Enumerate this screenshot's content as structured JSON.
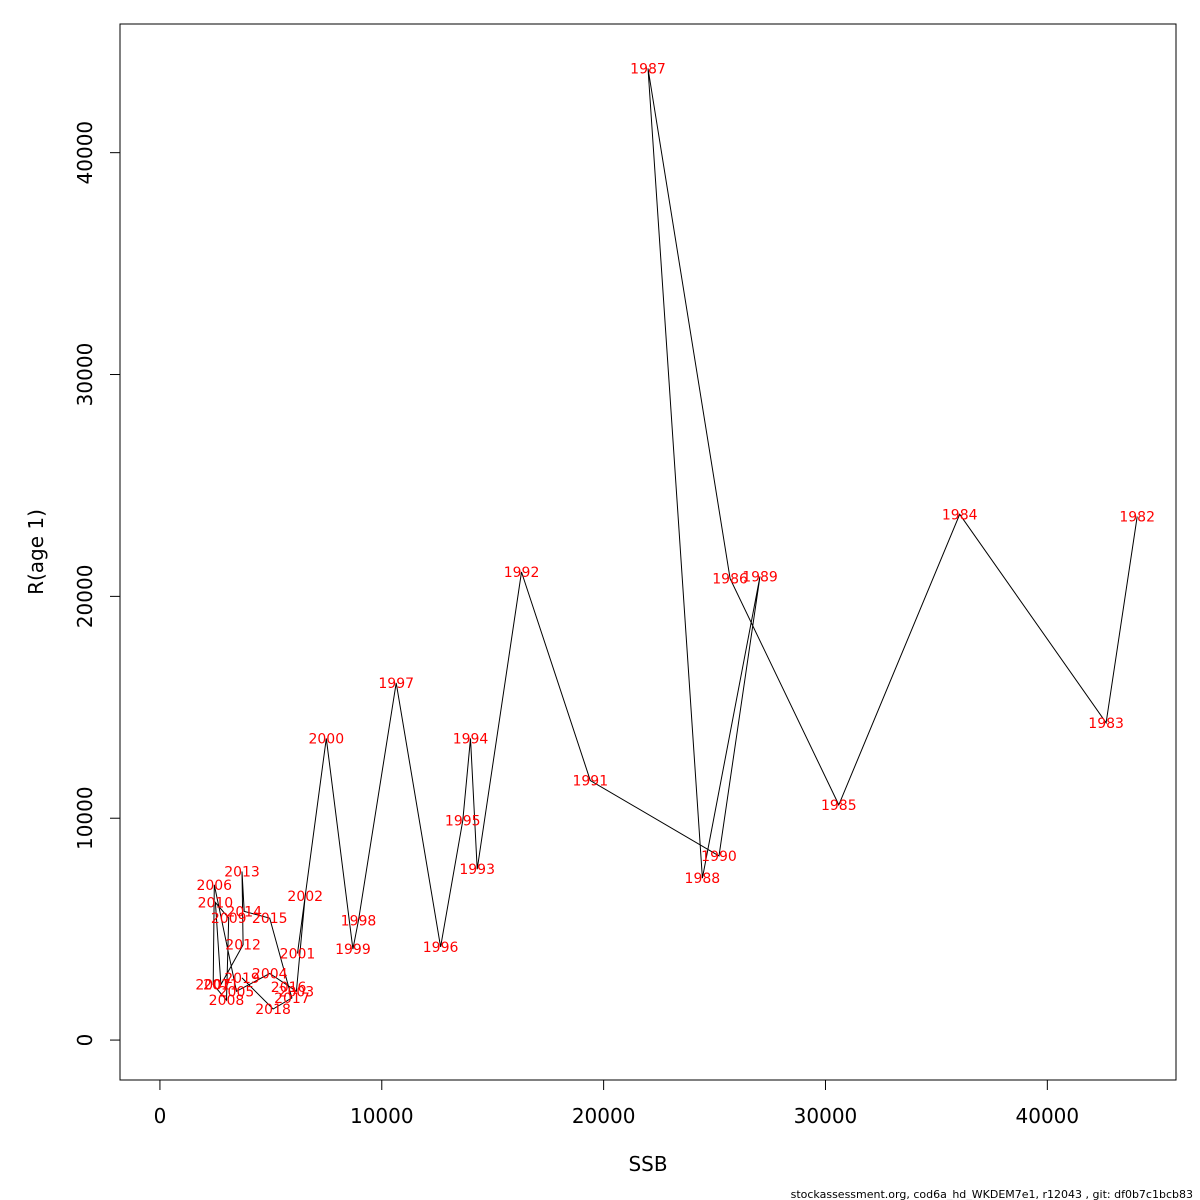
{
  "chart_data": {
    "type": "line",
    "title": "",
    "xlabel": "SSB",
    "ylabel": "R(age 1)",
    "xlim": [
      -1800,
      45800
    ],
    "ylim": [
      -1800,
      45800
    ],
    "xticks": [
      0,
      10000,
      20000,
      30000,
      40000
    ],
    "yticks": [
      0,
      10000,
      20000,
      30000,
      40000
    ],
    "grid": false,
    "line_color": "#000000",
    "label_color": "#ff0000",
    "points": [
      {
        "year": "1982",
        "x": 44050,
        "y": 23600
      },
      {
        "year": "1983",
        "x": 42650,
        "y": 14300
      },
      {
        "year": "1984",
        "x": 36050,
        "y": 23700
      },
      {
        "year": "1985",
        "x": 30600,
        "y": 10600
      },
      {
        "year": "1986",
        "x": 25700,
        "y": 20800
      },
      {
        "year": "1987",
        "x": 22000,
        "y": 43800
      },
      {
        "year": "1988",
        "x": 24450,
        "y": 7300
      },
      {
        "year": "1989",
        "x": 27050,
        "y": 20900
      },
      {
        "year": "1990",
        "x": 25200,
        "y": 8300
      },
      {
        "year": "1991",
        "x": 19400,
        "y": 11700
      },
      {
        "year": "1992",
        "x": 16300,
        "y": 21100
      },
      {
        "year": "1993",
        "x": 14300,
        "y": 7700
      },
      {
        "year": "1994",
        "x": 14000,
        "y": 13600
      },
      {
        "year": "1995",
        "x": 13650,
        "y": 9900
      },
      {
        "year": "1996",
        "x": 12650,
        "y": 4200
      },
      {
        "year": "1997",
        "x": 10650,
        "y": 16100
      },
      {
        "year": "1998",
        "x": 8950,
        "y": 5400
      },
      {
        "year": "1999",
        "x": 8700,
        "y": 4100
      },
      {
        "year": "2000",
        "x": 7500,
        "y": 13600
      },
      {
        "year": "2001",
        "x": 6200,
        "y": 3900
      },
      {
        "year": "2002",
        "x": 6550,
        "y": 6500
      },
      {
        "year": "2003",
        "x": 6150,
        "y": 2200
      },
      {
        "year": "2004",
        "x": 4950,
        "y": 3000
      },
      {
        "year": "2005",
        "x": 3450,
        "y": 2200
      },
      {
        "year": "2006",
        "x": 2450,
        "y": 7000
      },
      {
        "year": "2007",
        "x": 2400,
        "y": 2500
      },
      {
        "year": "2008",
        "x": 3000,
        "y": 1800
      },
      {
        "year": "2009",
        "x": 3100,
        "y": 5500
      },
      {
        "year": "2010",
        "x": 2500,
        "y": 6200
      },
      {
        "year": "2011",
        "x": 2750,
        "y": 2500
      },
      {
        "year": "2012",
        "x": 3750,
        "y": 4300
      },
      {
        "year": "2013",
        "x": 3700,
        "y": 7600
      },
      {
        "year": "2014",
        "x": 3800,
        "y": 5800
      },
      {
        "year": "2015",
        "x": 4950,
        "y": 5500
      },
      {
        "year": "2016",
        "x": 5800,
        "y": 2400
      },
      {
        "year": "2017",
        "x": 5950,
        "y": 1900
      },
      {
        "year": "2018",
        "x": 5100,
        "y": 1400
      },
      {
        "year": "2019",
        "x": 3700,
        "y": 2800
      }
    ]
  },
  "footer": "stockassessment.org, cod6a_hd_WKDEM7e1, r12043 , git: df0b7c1bcb83"
}
